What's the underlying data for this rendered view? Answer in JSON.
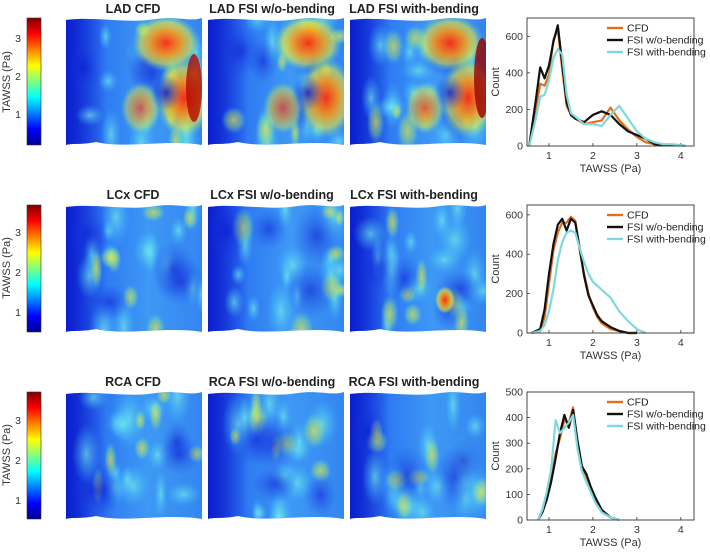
{
  "figure": {
    "colorbar": {
      "label": "TAWSS (Pa)",
      "ticks": [
        "3",
        "2",
        "1"
      ],
      "ticks_rows": [
        [
          "3",
          "2",
          "1"
        ],
        [
          "3",
          "2",
          "1"
        ],
        [
          "3",
          "2",
          "1"
        ]
      ]
    },
    "rows": [
      {
        "titles": [
          "LAD CFD",
          "LAD FSI w/o-bending",
          "LAD FSI with-bending"
        ]
      },
      {
        "titles": [
          "LCx CFD",
          "LCx FSI w/o-bending",
          "LCx FSI with-bending"
        ]
      },
      {
        "titles": [
          "RCA CFD",
          "RCA FSI w/o-bending",
          "RCA FSI with-bending"
        ]
      }
    ]
  },
  "chart_data": [
    {
      "type": "line",
      "title": "",
      "xlabel": "TAWSS (Pa)",
      "ylabel": "Count",
      "xlim": [
        0.5,
        4.3
      ],
      "ylim": [
        0,
        700
      ],
      "xticks": [
        "1",
        "2",
        "3",
        "4"
      ],
      "yticks": [
        "0",
        "200",
        "400",
        "600"
      ],
      "series": [
        {
          "name": "CFD",
          "color": "#e0701d",
          "x": [
            0.55,
            0.7,
            0.8,
            0.9,
            1.0,
            1.1,
            1.2,
            1.3,
            1.4,
            1.5,
            1.6,
            1.8,
            2.0,
            2.2,
            2.4,
            2.6,
            2.8,
            3.0,
            3.2,
            3.4,
            3.6,
            3.8,
            4.0,
            4.1
          ],
          "y": [
            0,
            200,
            340,
            330,
            390,
            580,
            640,
            420,
            220,
            170,
            150,
            120,
            130,
            140,
            210,
            140,
            90,
            50,
            20,
            10,
            5,
            5,
            5,
            0
          ]
        },
        {
          "name": "FSI w/o-bending",
          "color": "#111111",
          "x": [
            0.55,
            0.7,
            0.8,
            0.9,
            1.0,
            1.1,
            1.2,
            1.3,
            1.4,
            1.5,
            1.6,
            1.8,
            2.0,
            2.2,
            2.4,
            2.6,
            2.8,
            3.0,
            3.2,
            3.4,
            3.6,
            3.8,
            4.0,
            4.1
          ],
          "y": [
            0,
            250,
            430,
            370,
            440,
            570,
            660,
            450,
            240,
            170,
            150,
            130,
            170,
            190,
            170,
            120,
            80,
            60,
            40,
            10,
            5,
            5,
            5,
            0
          ]
        },
        {
          "name": "FSI with-bending",
          "color": "#7fd8dc",
          "x": [
            0.55,
            0.7,
            0.8,
            0.9,
            1.0,
            1.1,
            1.2,
            1.3,
            1.4,
            1.5,
            1.6,
            1.8,
            2.0,
            2.2,
            2.4,
            2.6,
            2.8,
            3.0,
            3.2,
            3.4,
            3.6,
            3.8,
            4.0,
            4.1
          ],
          "y": [
            0,
            150,
            270,
            280,
            360,
            480,
            530,
            500,
            280,
            180,
            160,
            120,
            120,
            110,
            170,
            220,
            150,
            80,
            40,
            20,
            10,
            10,
            5,
            0
          ]
        }
      ]
    },
    {
      "type": "line",
      "title": "",
      "xlabel": "TAWSS (Pa)",
      "ylabel": "Count",
      "xlim": [
        0.5,
        4.3
      ],
      "ylim": [
        0,
        650
      ],
      "xticks": [
        "1",
        "2",
        "3",
        "4"
      ],
      "yticks": [
        "0",
        "200",
        "400",
        "600"
      ],
      "series": [
        {
          "name": "CFD",
          "color": "#e0701d",
          "x": [
            0.6,
            0.8,
            0.9,
            1.0,
            1.1,
            1.2,
            1.3,
            1.4,
            1.5,
            1.6,
            1.7,
            1.8,
            1.9,
            2.0,
            2.1,
            2.2,
            2.4,
            2.6,
            2.8,
            3.0
          ],
          "y": [
            0,
            10,
            80,
            250,
            420,
            510,
            560,
            560,
            590,
            570,
            420,
            300,
            200,
            130,
            80,
            50,
            20,
            10,
            0,
            0
          ]
        },
        {
          "name": "FSI w/o-bending",
          "color": "#111111",
          "x": [
            0.6,
            0.8,
            0.9,
            1.0,
            1.1,
            1.2,
            1.3,
            1.4,
            1.5,
            1.6,
            1.7,
            1.8,
            1.9,
            2.0,
            2.1,
            2.2,
            2.4,
            2.6,
            2.8,
            3.0
          ],
          "y": [
            0,
            20,
            120,
            300,
            450,
            550,
            580,
            520,
            580,
            560,
            430,
            290,
            190,
            140,
            90,
            60,
            30,
            10,
            0,
            0
          ]
        },
        {
          "name": "FSI with-bending",
          "color": "#7fd8dc",
          "x": [
            0.6,
            0.8,
            0.9,
            1.0,
            1.1,
            1.2,
            1.3,
            1.4,
            1.5,
            1.6,
            1.7,
            1.8,
            1.9,
            2.0,
            2.2,
            2.4,
            2.6,
            2.8,
            3.0,
            3.2
          ],
          "y": [
            0,
            10,
            40,
            110,
            220,
            370,
            460,
            510,
            520,
            510,
            430,
            360,
            300,
            260,
            220,
            180,
            110,
            60,
            20,
            0
          ]
        }
      ]
    },
    {
      "type": "line",
      "title": "",
      "xlabel": "TAWSS (Pa)",
      "ylabel": "Count",
      "xlim": [
        0.5,
        4.3
      ],
      "ylim": [
        0,
        500
      ],
      "xticks": [
        "1",
        "2",
        "3",
        "4"
      ],
      "yticks": [
        "0",
        "100",
        "200",
        "300",
        "400",
        "500"
      ],
      "series": [
        {
          "name": "CFD",
          "color": "#e0701d",
          "x": [
            0.75,
            0.85,
            0.95,
            1.05,
            1.15,
            1.25,
            1.35,
            1.45,
            1.55,
            1.65,
            1.75,
            1.85,
            1.95,
            2.05,
            2.2,
            2.4,
            2.6
          ],
          "y": [
            0,
            40,
            90,
            160,
            260,
            320,
            390,
            380,
            440,
            300,
            200,
            170,
            120,
            80,
            30,
            10,
            0
          ]
        },
        {
          "name": "FSI w/o-bending",
          "color": "#111111",
          "x": [
            0.75,
            0.85,
            0.95,
            1.05,
            1.15,
            1.25,
            1.35,
            1.45,
            1.55,
            1.65,
            1.75,
            1.85,
            1.95,
            2.05,
            2.2,
            2.4,
            2.6
          ],
          "y": [
            0,
            30,
            80,
            150,
            240,
            340,
            410,
            360,
            430,
            310,
            210,
            180,
            130,
            90,
            40,
            10,
            0
          ]
        },
        {
          "name": "FSI with-bending",
          "color": "#7fd8dc",
          "x": [
            0.75,
            0.85,
            0.95,
            1.05,
            1.15,
            1.25,
            1.35,
            1.45,
            1.55,
            1.65,
            1.75,
            1.85,
            1.95,
            2.05,
            2.2,
            2.4,
            2.6
          ],
          "y": [
            0,
            40,
            110,
            200,
            390,
            340,
            360,
            380,
            410,
            280,
            190,
            150,
            110,
            70,
            30,
            10,
            0
          ]
        }
      ]
    }
  ]
}
